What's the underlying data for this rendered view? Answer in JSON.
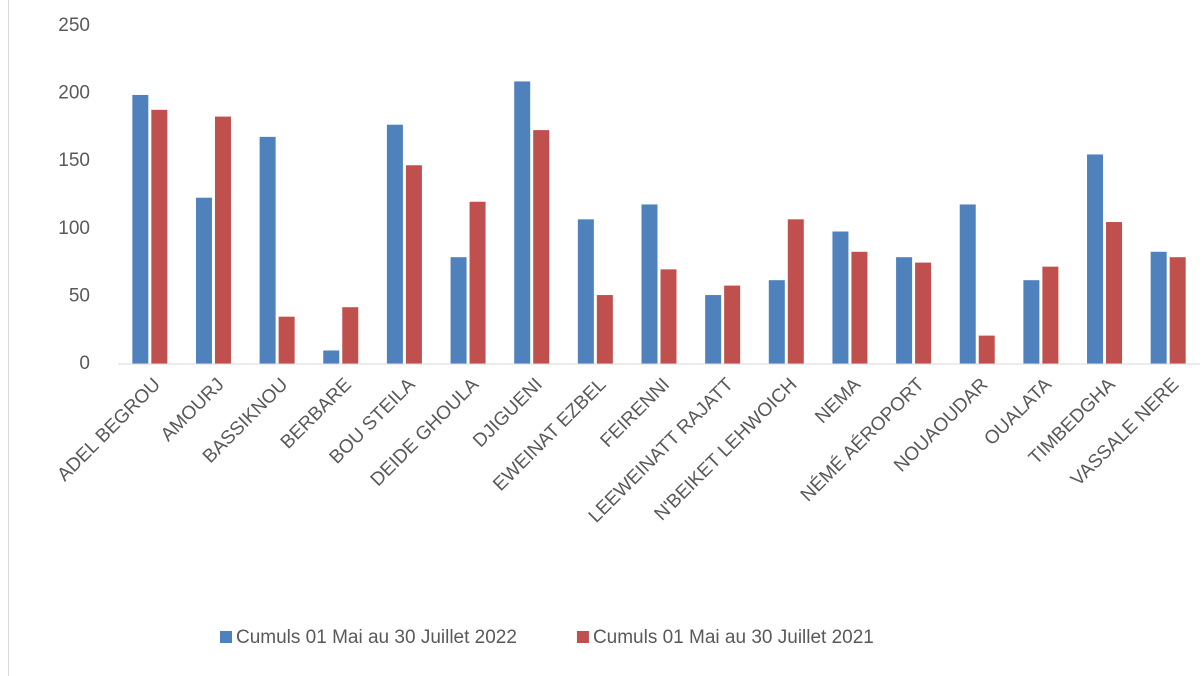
{
  "chart_data": {
    "type": "bar",
    "categories": [
      "ADEL BEGROU",
      "AMOURJ",
      "BASSIKNOU",
      "BERBARE",
      "BOU STEILA",
      "DEIDE GHOULA",
      "DJIGUENI",
      "EWEINAT EZBEL",
      "FEIRENNI",
      "LEEWEINATT RAJATT",
      "N'BEIKET LEHWOICH",
      "NEMA",
      "NÉMÉ AÉROPORT",
      "NOUAOUDAR",
      "OUALATA",
      "TIMBEDGHA",
      "VASSALE NERE"
    ],
    "series": [
      {
        "name": "Cumuls 01 Mai au 30 Juillet 2022",
        "color": "#4f81bd",
        "values": [
          199,
          123,
          168,
          10,
          177,
          79,
          209,
          107,
          118,
          51,
          62,
          98,
          79,
          118,
          62,
          155,
          83
        ]
      },
      {
        "name": "Cumuls 01 Mai au 30 Juillet 2021",
        "color": "#c0504d",
        "values": [
          188,
          183,
          35,
          42,
          147,
          120,
          173,
          51,
          70,
          58,
          107,
          83,
          75,
          21,
          72,
          105,
          79
        ]
      }
    ],
    "ylim": [
      0,
      250
    ],
    "yticks": [
      0,
      50,
      100,
      150,
      200,
      250
    ],
    "grid": false,
    "legend": "bottom"
  }
}
